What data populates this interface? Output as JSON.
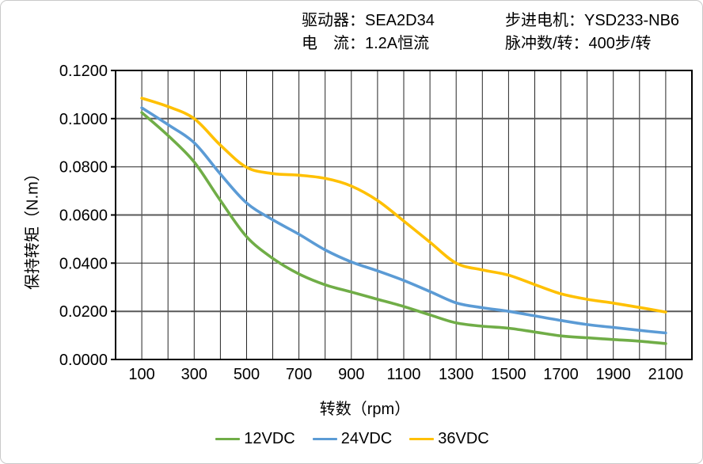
{
  "header": {
    "driver": "驱动器：SEA2D34",
    "current": "电　流：1.2A恒流",
    "motor": "步进电机：YSD233-NB6",
    "pulses": "脉冲数/转：400步/转"
  },
  "chart_data": {
    "type": "line",
    "title": "",
    "xlabel": "转数（rpm）",
    "ylabel": "保持转矩（N.m）",
    "xlim": [
      0,
      2200
    ],
    "ylim": [
      0,
      0.12
    ],
    "x_gridline_step": 100,
    "y_gridline_step": 0.02,
    "grid": true,
    "legend_position": "bottom",
    "x_ticks": [
      100,
      300,
      500,
      700,
      900,
      1100,
      1300,
      1500,
      1700,
      1900,
      2100
    ],
    "y_tick_labels": [
      "0.0000",
      "0.0200",
      "0.0400",
      "0.0600",
      "0.0800",
      "0.1000",
      "0.1200"
    ],
    "y_tick_values": [
      0,
      0.02,
      0.04,
      0.06,
      0.08,
      0.1,
      0.12
    ],
    "x": [
      100,
      200,
      300,
      400,
      500,
      600,
      700,
      800,
      900,
      1000,
      1100,
      1200,
      1300,
      1400,
      1500,
      1600,
      1700,
      1800,
      1900,
      2000,
      2100
    ],
    "series": [
      {
        "name": "12VDC",
        "color": "#70AD47",
        "values": [
          0.1025,
          0.093,
          0.082,
          0.066,
          0.051,
          0.042,
          0.0355,
          0.031,
          0.028,
          0.025,
          0.022,
          0.0185,
          0.0152,
          0.0138,
          0.013,
          0.0114,
          0.0098,
          0.009,
          0.0083,
          0.0076,
          0.0066
        ]
      },
      {
        "name": "24VDC",
        "color": "#5B9BD5",
        "values": [
          0.1045,
          0.0975,
          0.09,
          0.077,
          0.065,
          0.058,
          0.052,
          0.0455,
          0.0405,
          0.0368,
          0.0328,
          0.0282,
          0.0235,
          0.0215,
          0.02,
          0.0181,
          0.0162,
          0.0145,
          0.0133,
          0.0121,
          0.011
        ]
      },
      {
        "name": "36VDC",
        "color": "#FFC000",
        "values": [
          0.1085,
          0.105,
          0.1,
          0.089,
          0.0798,
          0.0772,
          0.0765,
          0.0752,
          0.072,
          0.066,
          0.0575,
          0.0487,
          0.04,
          0.0372,
          0.035,
          0.0311,
          0.0273,
          0.025,
          0.0234,
          0.0216,
          0.0197
        ]
      }
    ],
    "colors": {
      "grid_minor": "#262626",
      "grid_major": "#595959",
      "axis_border": "#000000",
      "frame_border": "#c9c9c9"
    }
  }
}
